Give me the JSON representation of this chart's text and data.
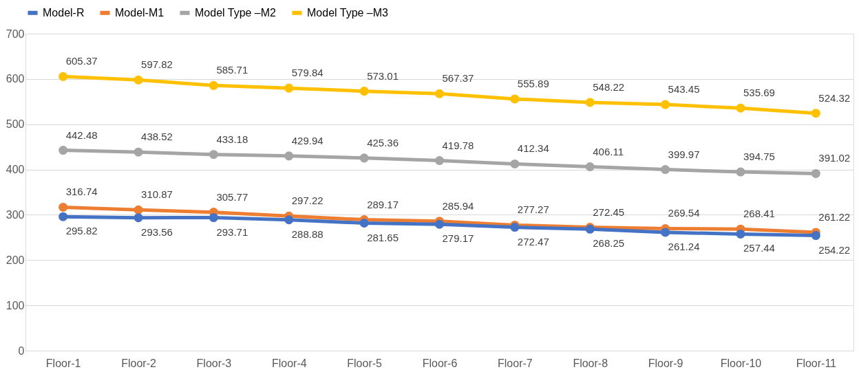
{
  "chart_data": {
    "type": "line",
    "categories": [
      "Floor-1",
      "Floor-2",
      "Floor-3",
      "Floor-4",
      "Floor-5",
      "Floor-6",
      "Floor-7",
      "Floor-8",
      "Floor-9",
      "Floor-10",
      "Floor-11"
    ],
    "series": [
      {
        "name": "Model-R",
        "color": "#4472c4",
        "values": [
          295.82,
          293.56,
          293.71,
          288.88,
          281.65,
          279.17,
          272.47,
          268.25,
          261.24,
          257.44,
          254.22
        ]
      },
      {
        "name": "Model-M1",
        "color": "#ed7d31",
        "values": [
          316.74,
          310.87,
          305.77,
          297.22,
          289.17,
          285.94,
          277.27,
          272.45,
          269.54,
          268.41,
          261.22
        ]
      },
      {
        "name": "Model Type –M2",
        "color": "#a5a5a5",
        "values": [
          442.48,
          438.52,
          433.18,
          429.94,
          425.36,
          419.78,
          412.34,
          406.11,
          399.97,
          394.75,
          391.02
        ]
      },
      {
        "name": "Model Type –M3",
        "color": "#ffc000",
        "values": [
          605.37,
          597.82,
          585.71,
          579.84,
          573.01,
          567.37,
          555.89,
          548.22,
          543.45,
          535.69,
          524.32
        ]
      }
    ],
    "ylim": [
      0,
      700
    ],
    "yticks": [
      0,
      100,
      200,
      300,
      400,
      500,
      600,
      700
    ],
    "grid": "y",
    "legend": "top",
    "marker": "circle",
    "line_style": "solid",
    "data_labels": true
  }
}
